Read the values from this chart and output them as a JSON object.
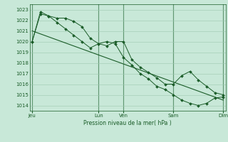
{
  "bg_color": "#c8e8d8",
  "grid_color": "#9dc8b0",
  "line_color": "#1a5c28",
  "marker_color": "#1a5c28",
  "xlabel": "Pression niveau de la mer( hPa )",
  "ylim": [
    1013.5,
    1023.5
  ],
  "xtick_labels": [
    "Jeu",
    "",
    "Lun",
    "Ven",
    "",
    "Sam",
    "",
    "Dim"
  ],
  "xtick_positions": [
    0,
    7,
    8,
    11,
    15,
    17,
    21,
    23
  ],
  "vlines": [
    0,
    8,
    11,
    17,
    23
  ],
  "series1_x": [
    0,
    1,
    2,
    3,
    4,
    5,
    6,
    7,
    8,
    9,
    10,
    11,
    12,
    13,
    14,
    15,
    16,
    17,
    18,
    19,
    20,
    21,
    22,
    23
  ],
  "series1_y": [
    1020.0,
    1022.6,
    1022.4,
    1022.2,
    1022.2,
    1021.9,
    1021.4,
    1020.3,
    1019.8,
    1019.6,
    1020.0,
    1020.0,
    1018.3,
    1017.6,
    1017.1,
    1016.6,
    1016.0,
    1016.0,
    1016.8,
    1017.2,
    1016.4,
    1015.8,
    1015.2,
    1015.0
  ],
  "series2_x": [
    0,
    1,
    2,
    3,
    4,
    5,
    6,
    7,
    8,
    9,
    10,
    11,
    12,
    13,
    14,
    15,
    16,
    17,
    18,
    19,
    20,
    21,
    22,
    23
  ],
  "series2_y": [
    1020.0,
    1022.8,
    1022.4,
    1021.8,
    1021.2,
    1020.6,
    1020.0,
    1019.4,
    1019.8,
    1020.0,
    1019.8,
    1018.5,
    1017.8,
    1017.0,
    1016.5,
    1015.8,
    1015.5,
    1015.0,
    1014.5,
    1014.2,
    1014.0,
    1014.2,
    1014.7,
    1014.8
  ],
  "series3_x": [
    0,
    23
  ],
  "series3_y": [
    1021.0,
    1014.5
  ]
}
